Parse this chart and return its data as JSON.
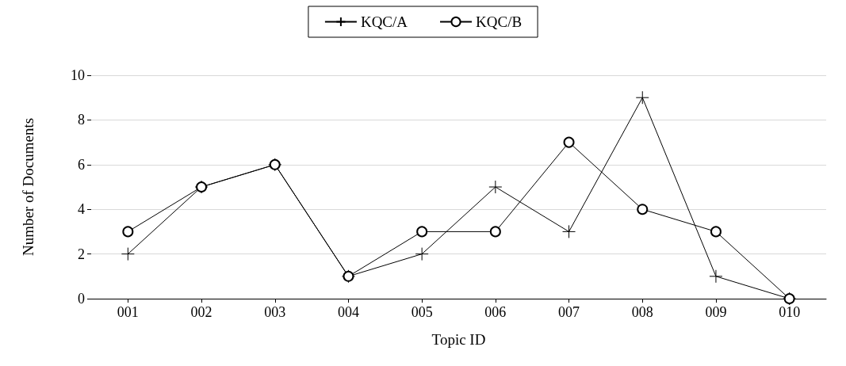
{
  "chart_data": {
    "type": "line",
    "xlabel": "Topic ID",
    "ylabel": "Number of Documents",
    "categories": [
      "001",
      "002",
      "003",
      "004",
      "005",
      "006",
      "007",
      "008",
      "009",
      "010"
    ],
    "series": [
      {
        "name": "KQC/A",
        "color": "#000000",
        "marker": "cross",
        "values": [
          2,
          5,
          6,
          1,
          2,
          5,
          3,
          9,
          1,
          0
        ]
      },
      {
        "name": "KQC/B",
        "color": "#000000",
        "marker": "circle",
        "values": [
          3,
          5,
          6,
          1,
          3,
          3,
          7,
          4,
          3,
          0
        ]
      }
    ],
    "ylim": [
      0,
      10
    ],
    "yticks": [
      0,
      2,
      4,
      6,
      8,
      10
    ],
    "grid": "y",
    "legend": "top",
    "line_style": "solid"
  }
}
